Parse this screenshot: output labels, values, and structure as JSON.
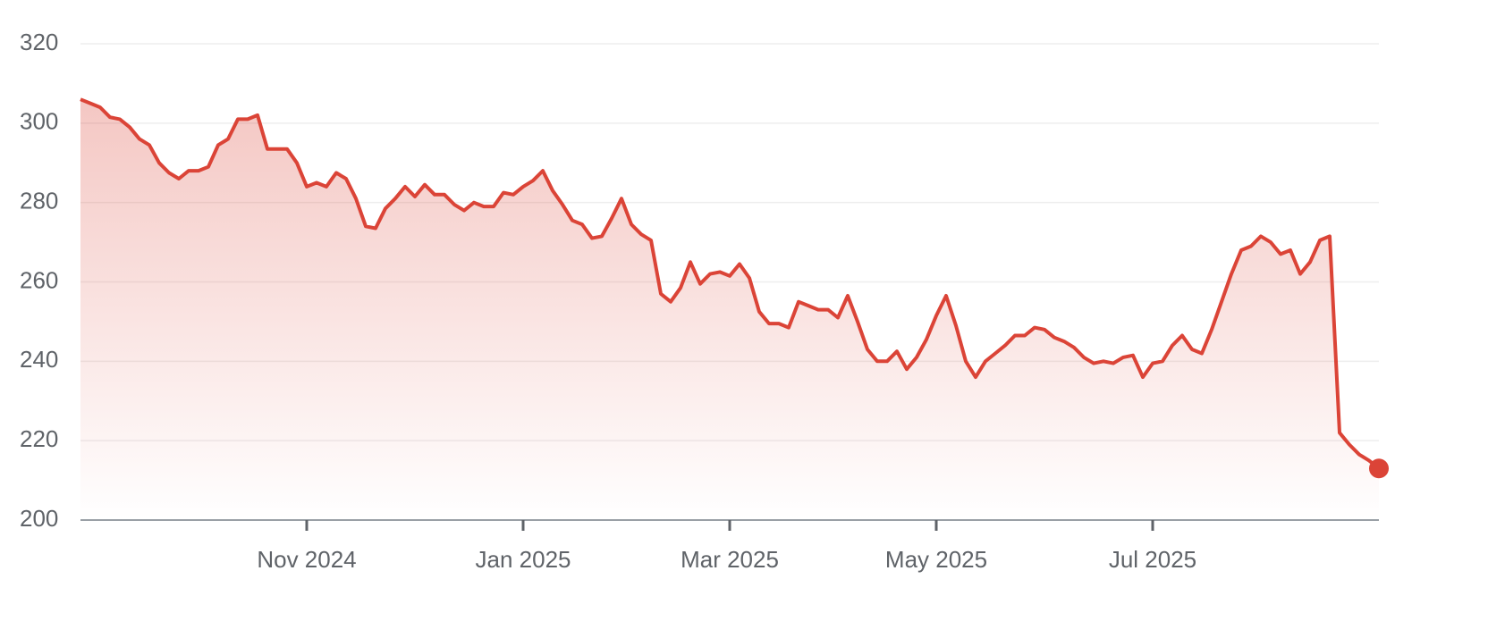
{
  "chart_data": {
    "type": "line",
    "color": "#db4437",
    "grid": true,
    "ylim": [
      200,
      320
    ],
    "yticks": [
      200,
      220,
      240,
      260,
      280,
      300,
      320
    ],
    "xticks": [
      {
        "value": 23,
        "label": "Nov 2024"
      },
      {
        "value": 45,
        "label": "Jan 2025"
      },
      {
        "value": 66,
        "label": "Mar 2025"
      },
      {
        "value": 87,
        "label": "May 2025"
      },
      {
        "value": 109,
        "label": "Jul 2025"
      }
    ],
    "values": [
      306,
      305,
      304,
      301.5,
      301,
      299,
      296,
      294.5,
      290,
      287.5,
      286,
      288,
      288,
      289,
      294.5,
      296,
      301,
      301,
      302,
      293.5,
      293.5,
      293.5,
      290,
      284,
      285,
      284,
      287.5,
      286,
      281,
      274,
      273.5,
      278.5,
      281,
      284,
      281.5,
      284.5,
      282,
      282,
      279.5,
      278,
      280,
      279,
      279,
      282.5,
      282,
      284,
      285.5,
      288,
      283,
      279.5,
      275.5,
      274.5,
      271,
      271.5,
      276,
      281,
      274.5,
      272,
      270.5,
      257,
      255,
      258.5,
      265,
      259.5,
      262,
      262.5,
      261.5,
      264.5,
      261,
      252.5,
      249.5,
      249.5,
      248.5,
      255,
      254,
      253,
      253,
      251,
      256.5,
      250,
      243,
      240,
      240,
      242.5,
      238,
      241,
      245.5,
      251.5,
      256.5,
      249,
      240,
      236,
      240,
      242,
      244,
      246.5,
      246.5,
      248.5,
      248,
      246,
      245,
      243.5,
      241,
      239.5,
      240,
      239.5,
      241,
      241.5,
      236,
      239.5,
      240,
      244,
      246.5,
      243,
      242,
      248,
      255,
      262,
      268,
      269,
      271.5,
      270,
      267,
      268,
      262,
      265,
      270.5,
      271.5,
      222,
      219,
      216.5,
      215,
      213
    ]
  }
}
